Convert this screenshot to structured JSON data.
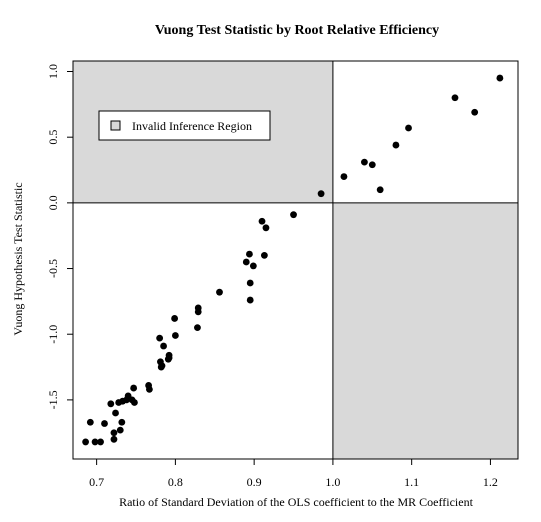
{
  "chart_data": {
    "type": "scatter",
    "title": "Vuong Test Statistic by Root Relative Efficiency",
    "xlabel": "Ratio of Standard Deviation of the OLS coefficient to the MR Coefficient",
    "ylabel": "Vuong Hypothesis Test Statistic",
    "xlim": [
      0.67,
      1.235
    ],
    "ylim": [
      -1.95,
      1.08
    ],
    "xticks": [
      0.7,
      0.8,
      0.9,
      1.0,
      1.1,
      1.2
    ],
    "xtick_labels": [
      "0.7",
      "0.8",
      "0.9",
      "1.0",
      "1.1",
      "1.2"
    ],
    "yticks": [
      -1.5,
      -1.0,
      -0.5,
      0.0,
      0.5,
      1.0
    ],
    "ytick_labels": [
      "-1.5",
      "-1.0",
      "-0.5",
      "0.0",
      "0.5",
      "1.0"
    ],
    "reference_lines": {
      "x": 1.0,
      "y": 0.0
    },
    "shaded_regions": [
      {
        "x": [
          0.67,
          1.0
        ],
        "y": [
          0.0,
          1.08
        ]
      },
      {
        "x": [
          1.0,
          1.235
        ],
        "y": [
          -1.95,
          0.0
        ]
      }
    ],
    "shade_color": "#d9d9d9",
    "marker_color": "#000000",
    "grid": false,
    "legend": {
      "position": "top-left",
      "entries": [
        "Invalid Inference Region"
      ]
    },
    "points": [
      [
        0.686,
        -1.82
      ],
      [
        0.692,
        -1.67
      ],
      [
        0.698,
        -1.82
      ],
      [
        0.705,
        -1.82
      ],
      [
        0.71,
        -1.68
      ],
      [
        0.718,
        -1.53
      ],
      [
        0.722,
        -1.8
      ],
      [
        0.722,
        -1.75
      ],
      [
        0.724,
        -1.6
      ],
      [
        0.728,
        -1.52
      ],
      [
        0.73,
        -1.73
      ],
      [
        0.732,
        -1.67
      ],
      [
        0.733,
        -1.51
      ],
      [
        0.738,
        -1.5
      ],
      [
        0.74,
        -1.47
      ],
      [
        0.745,
        -1.5
      ],
      [
        0.747,
        -1.41
      ],
      [
        0.748,
        -1.52
      ],
      [
        0.766,
        -1.39
      ],
      [
        0.767,
        -1.42
      ],
      [
        0.78,
        -1.03
      ],
      [
        0.781,
        -1.21
      ],
      [
        0.782,
        -1.25
      ],
      [
        0.783,
        -1.24
      ],
      [
        0.785,
        -1.09
      ],
      [
        0.791,
        -1.19
      ],
      [
        0.792,
        -1.16
      ],
      [
        0.792,
        -1.18
      ],
      [
        0.799,
        -0.88
      ],
      [
        0.8,
        -1.01
      ],
      [
        0.828,
        -0.95
      ],
      [
        0.829,
        -0.8
      ],
      [
        0.829,
        -0.83
      ],
      [
        0.856,
        -0.68
      ],
      [
        0.89,
        -0.45
      ],
      [
        0.894,
        -0.39
      ],
      [
        0.895,
        -0.61
      ],
      [
        0.895,
        -0.74
      ],
      [
        0.899,
        -0.48
      ],
      [
        0.91,
        -0.14
      ],
      [
        0.913,
        -0.4
      ],
      [
        0.915,
        -0.19
      ],
      [
        0.95,
        -0.09
      ],
      [
        0.985,
        0.07
      ],
      [
        1.014,
        0.2
      ],
      [
        1.04,
        0.31
      ],
      [
        1.05,
        0.29
      ],
      [
        1.06,
        0.1
      ],
      [
        1.08,
        0.44
      ],
      [
        1.096,
        0.57
      ],
      [
        1.155,
        0.8
      ],
      [
        1.18,
        0.69
      ],
      [
        1.212,
        0.95
      ]
    ]
  }
}
